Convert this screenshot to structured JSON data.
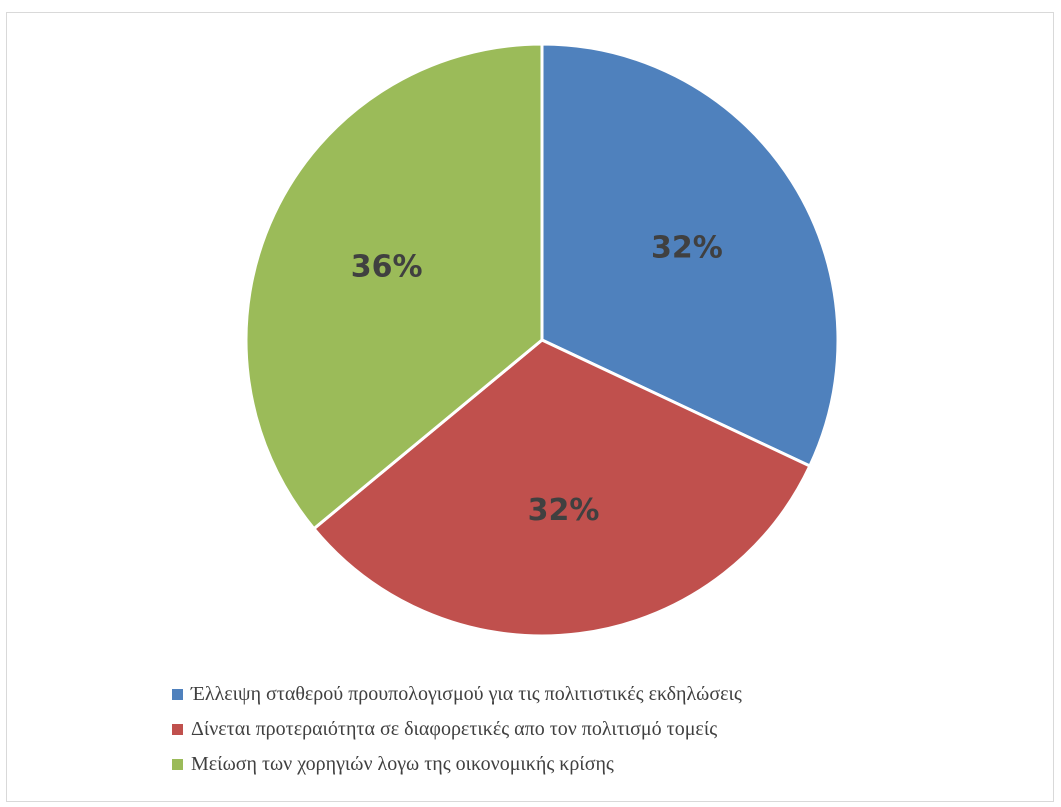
{
  "chart_data": {
    "type": "pie",
    "title": "",
    "categories": [
      "Έλλειψη σταθερού προυπολογισμού για τις πολιτιστικές εκδηλώσεις",
      "Δίνεται προτεραιότητα σε διαφορετικές απο τον πολιτισμό τομείς",
      "Μείωση των χορηγιών λογω της οικονομικής κρίσης"
    ],
    "values": [
      32,
      32,
      36
    ],
    "data_labels": [
      "32%",
      "32%",
      "36%"
    ],
    "colors": [
      "#4f81bd",
      "#c0504d",
      "#9bbb59"
    ],
    "start_angle_deg": 0,
    "direction": "clockwise",
    "legend_position": "bottom"
  }
}
